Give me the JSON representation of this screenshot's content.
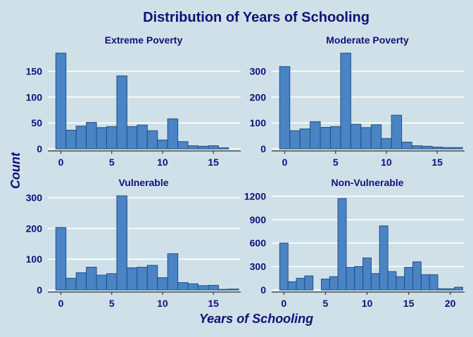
{
  "chart_data": {
    "type": "bar",
    "title": "Distribution of Years of Schooling",
    "xlabel": "Years of Schooling",
    "ylabel": "Count",
    "colors": {
      "background": "#cfe0e8",
      "bar_fill": "#4a84c4",
      "bar_edge": "#1f4f86",
      "text": "#10107a",
      "grid": "#ffffff"
    },
    "grid": true,
    "facets": [
      {
        "name": "Extreme Poverty",
        "x": [
          0,
          1,
          2,
          3,
          4,
          5,
          6,
          7,
          8,
          9,
          10,
          11,
          12,
          13,
          14,
          15,
          16,
          17
        ],
        "values": [
          185,
          36,
          44,
          51,
          41,
          43,
          141,
          43,
          46,
          35,
          17,
          58,
          14,
          6,
          5,
          6,
          2,
          0
        ],
        "ylim": [
          0,
          190
        ],
        "yticks": [
          0,
          50,
          100,
          150
        ],
        "xticks": [
          0,
          5,
          10,
          15
        ]
      },
      {
        "name": "Moderate Poverty",
        "x": [
          0,
          1,
          2,
          3,
          4,
          5,
          6,
          7,
          8,
          9,
          10,
          11,
          12,
          13,
          14,
          15,
          16,
          17
        ],
        "values": [
          318,
          70,
          77,
          105,
          83,
          86,
          370,
          95,
          82,
          93,
          40,
          130,
          26,
          12,
          10,
          7,
          5,
          5
        ],
        "ylim": [
          0,
          380
        ],
        "yticks": [
          0,
          100,
          200,
          300
        ],
        "xticks": [
          0,
          5,
          10,
          15
        ]
      },
      {
        "name": "Vulnerable",
        "x": [
          0,
          1,
          2,
          3,
          4,
          5,
          6,
          7,
          8,
          9,
          10,
          11,
          12,
          13,
          14,
          15,
          16,
          17
        ],
        "values": [
          203,
          38,
          56,
          74,
          48,
          53,
          306,
          72,
          74,
          80,
          40,
          118,
          24,
          20,
          14,
          15,
          2,
          3
        ],
        "ylim": [
          0,
          315
        ],
        "yticks": [
          0,
          100,
          200,
          300
        ],
        "xticks": [
          0,
          5,
          10,
          15
        ]
      },
      {
        "name": "Non-Vulnerable",
        "x": [
          0,
          1,
          2,
          3,
          4,
          5,
          6,
          7,
          8,
          9,
          10,
          11,
          12,
          13,
          14,
          15,
          16,
          17,
          18,
          19,
          20,
          21
        ],
        "values": [
          600,
          105,
          150,
          180,
          0,
          140,
          170,
          1170,
          290,
          300,
          410,
          210,
          820,
          235,
          170,
          290,
          360,
          195,
          195,
          15,
          15,
          35
        ],
        "ylim": [
          0,
          1240
        ],
        "yticks": [
          0,
          300,
          600,
          900,
          1200
        ],
        "xticks": [
          0,
          5,
          10,
          15,
          20
        ]
      }
    ]
  }
}
